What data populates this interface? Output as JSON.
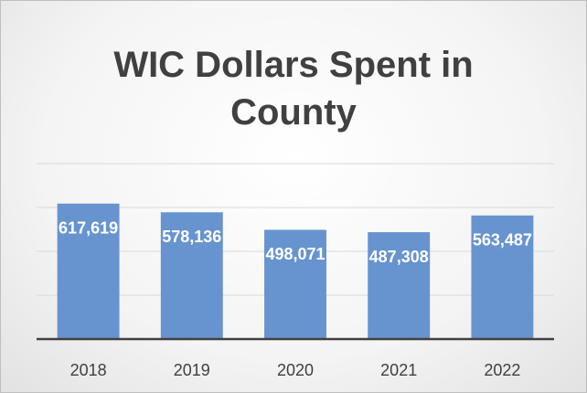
{
  "chart_data": {
    "type": "bar",
    "title": "WIC Dollars Spent in County",
    "categories": [
      "2018",
      "2019",
      "2020",
      "2021",
      "2022"
    ],
    "values": [
      617619,
      578136,
      498071,
      487308,
      563487
    ],
    "value_labels": [
      "617,619",
      "578,136",
      "498,071",
      "487,308",
      "563,487"
    ],
    "color": "#6794cf",
    "ylim": [
      0,
      800000
    ],
    "yticks": [
      0,
      200000,
      400000,
      600000,
      800000
    ],
    "grid": true
  }
}
